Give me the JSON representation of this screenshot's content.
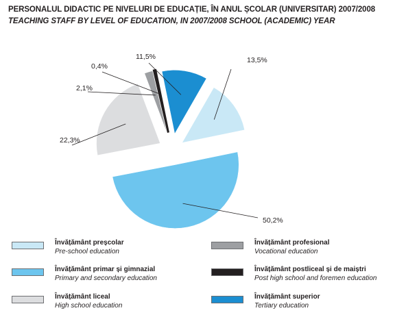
{
  "title": "PERSONALUL DIDACTIC PE NIVELURI DE EDUCAȚIE, ÎN ANUL ȘCOLAR (UNIVERSITAR) 2007/2008",
  "subtitle": "TEACHING STAFF BY LEVEL OF EDUCATION, IN 2007/2008 SCHOOL (ACADEMIC) YEAR",
  "chart_data": {
    "type": "pie",
    "title": "PERSONALUL DIDACTIC PE NIVELURI DE EDUCAȚIE, ÎN ANUL ȘCOLAR (UNIVERSITAR) 2007/2008",
    "subtitle": "TEACHING STAFF BY LEVEL OF EDUCATION, IN 2007/2008 SCHOOL (ACADEMIC) YEAR",
    "unit": "%",
    "legend_position": "bottom",
    "slices": [
      {
        "label_ro": "Învățământ preșcolar",
        "label_en": "Pre-school education",
        "value": 13.5,
        "value_label": "13,5%",
        "color": "#c9e8f6"
      },
      {
        "label_ro": "Învățământ primar și gimnazial",
        "label_en": "Primary and secondary education",
        "value": 50.2,
        "value_label": "50,2%",
        "color": "#6dc5ee"
      },
      {
        "label_ro": "Învățământ liceal",
        "label_en": "High school education",
        "value": 22.3,
        "value_label": "22,3%",
        "color": "#dcdddf"
      },
      {
        "label_ro": "Învățământ profesional",
        "label_en": "Vocational education",
        "value": 2.1,
        "value_label": "2,1%",
        "color": "#9d9fa2"
      },
      {
        "label_ro": "Învățământ postliceal și de maiștri",
        "label_en": "Post high school and foremen education",
        "value": 0.4,
        "value_label": "0,4%",
        "color": "#231f20"
      },
      {
        "label_ro": "Învățământ superior",
        "label_en": "Tertiary education",
        "value": 11.5,
        "value_label": "11,5%",
        "color": "#1b8ed1"
      }
    ]
  }
}
